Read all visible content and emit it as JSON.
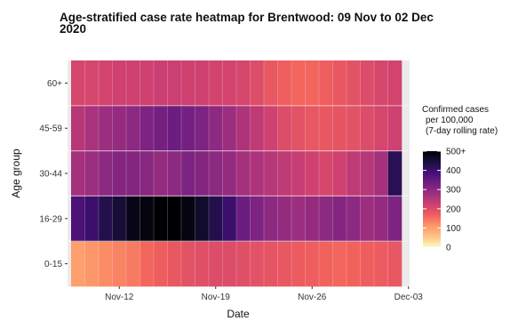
{
  "chart_data": {
    "type": "heatmap",
    "title_line1": "Age-stratified case rate heatmap for Brentwood: 09 Nov to 02 Dec",
    "title_line2": "2020",
    "xlabel": "Date",
    "ylabel": "Age group",
    "y_categories": [
      "0-15",
      "16-29",
      "30-44",
      "45-59",
      "60+"
    ],
    "dates": [
      "2020-11-09",
      "2020-11-10",
      "2020-11-11",
      "2020-11-12",
      "2020-11-13",
      "2020-11-14",
      "2020-11-15",
      "2020-11-16",
      "2020-11-17",
      "2020-11-18",
      "2020-11-19",
      "2020-11-20",
      "2020-11-21",
      "2020-11-22",
      "2020-11-23",
      "2020-11-24",
      "2020-11-25",
      "2020-11-26",
      "2020-11-27",
      "2020-11-28",
      "2020-11-29",
      "2020-11-30",
      "2020-12-01",
      "2020-12-02"
    ],
    "x_ticks": [
      {
        "date": "2020-11-12",
        "label": "Nov-12"
      },
      {
        "date": "2020-11-19",
        "label": "Nov-19"
      },
      {
        "date": "2020-11-26",
        "label": "Nov-26"
      },
      {
        "date": "2020-12-03",
        "label": "Dec-03"
      }
    ],
    "values": {
      "60+": [
        210,
        210,
        215,
        220,
        220,
        220,
        225,
        225,
        220,
        220,
        215,
        215,
        210,
        200,
        180,
        170,
        160,
        160,
        170,
        180,
        190,
        200,
        210,
        215
      ],
      "45-59": [
        250,
        265,
        280,
        290,
        300,
        320,
        330,
        340,
        330,
        320,
        300,
        280,
        260,
        240,
        220,
        200,
        190,
        180,
        180,
        185,
        190,
        200,
        210,
        220
      ],
      "30-44": [
        270,
        280,
        300,
        310,
        310,
        305,
        290,
        300,
        320,
        310,
        300,
        290,
        270,
        260,
        250,
        240,
        230,
        220,
        210,
        220,
        240,
        250,
        270,
        420
      ],
      "16-29": [
        380,
        400,
        430,
        450,
        480,
        490,
        500,
        500,
        490,
        460,
        430,
        400,
        340,
        320,
        300,
        290,
        280,
        290,
        300,
        310,
        300,
        280,
        290,
        320
      ],
      "0-15": [
        100,
        110,
        120,
        130,
        140,
        160,
        170,
        180,
        190,
        195,
        200,
        200,
        195,
        190,
        185,
        180,
        175,
        170,
        165,
        160,
        165,
        170,
        175,
        180
      ]
    },
    "legend": {
      "title_lines": [
        "Confirmed cases",
        "per 100,000",
        "(7-day rolling rate)"
      ],
      "ticks": [
        "500+",
        "400",
        "300",
        "200",
        "100",
        "0"
      ],
      "tick_values": [
        500,
        400,
        300,
        200,
        100,
        0
      ],
      "max": 500
    },
    "grid": true,
    "legend_position": "right",
    "colormap": [
      "#fcfdbf",
      "#fec287",
      "#fd9668",
      "#f1605d",
      "#cd4071",
      "#9e2f7f",
      "#721f81",
      "#440f76",
      "#180f3d",
      "#000004"
    ]
  }
}
